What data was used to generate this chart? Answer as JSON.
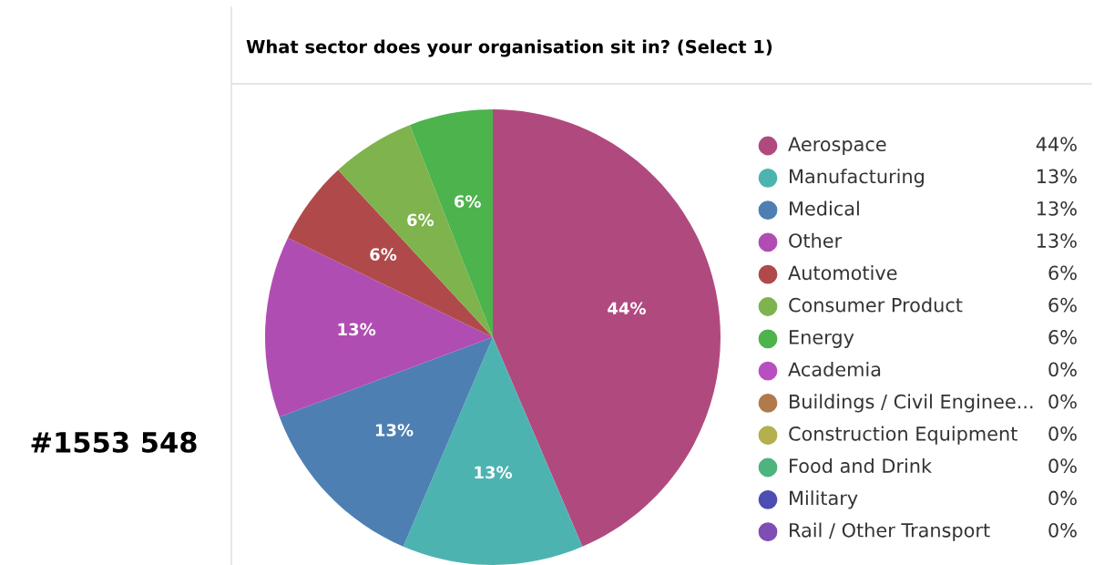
{
  "chart_data": {
    "type": "pie",
    "title": "What sector does your organisation sit in? (Select 1)",
    "categories": [
      "Aerospace",
      "Manufacturing",
      "Medical",
      "Other",
      "Automotive",
      "Consumer Product",
      "Energy",
      "Academia",
      "Buildings / Civil Enginee...",
      "Construction Equipment",
      "Food and Drink",
      "Military",
      "Rail / Other Transport"
    ],
    "values": [
      44,
      13,
      13,
      13,
      6,
      6,
      6,
      0,
      0,
      0,
      0,
      0,
      0
    ],
    "value_labels": [
      "44%",
      "13%",
      "13%",
      "13%",
      "6%",
      "6%",
      "6%",
      "0%",
      "0%",
      "0%",
      "0%",
      "0%",
      "0%"
    ],
    "colors": [
      "#b04a7e",
      "#4db3b0",
      "#4d7fb3",
      "#b04db3",
      "#b04a4a",
      "#7fb34d",
      "#4db34d",
      "#b84fc0",
      "#b07a4d",
      "#b3b04d",
      "#4db37f",
      "#4d4db3",
      "#7f4db3"
    ],
    "legend": "right",
    "annotations": [
      "#1553 548"
    ]
  }
}
